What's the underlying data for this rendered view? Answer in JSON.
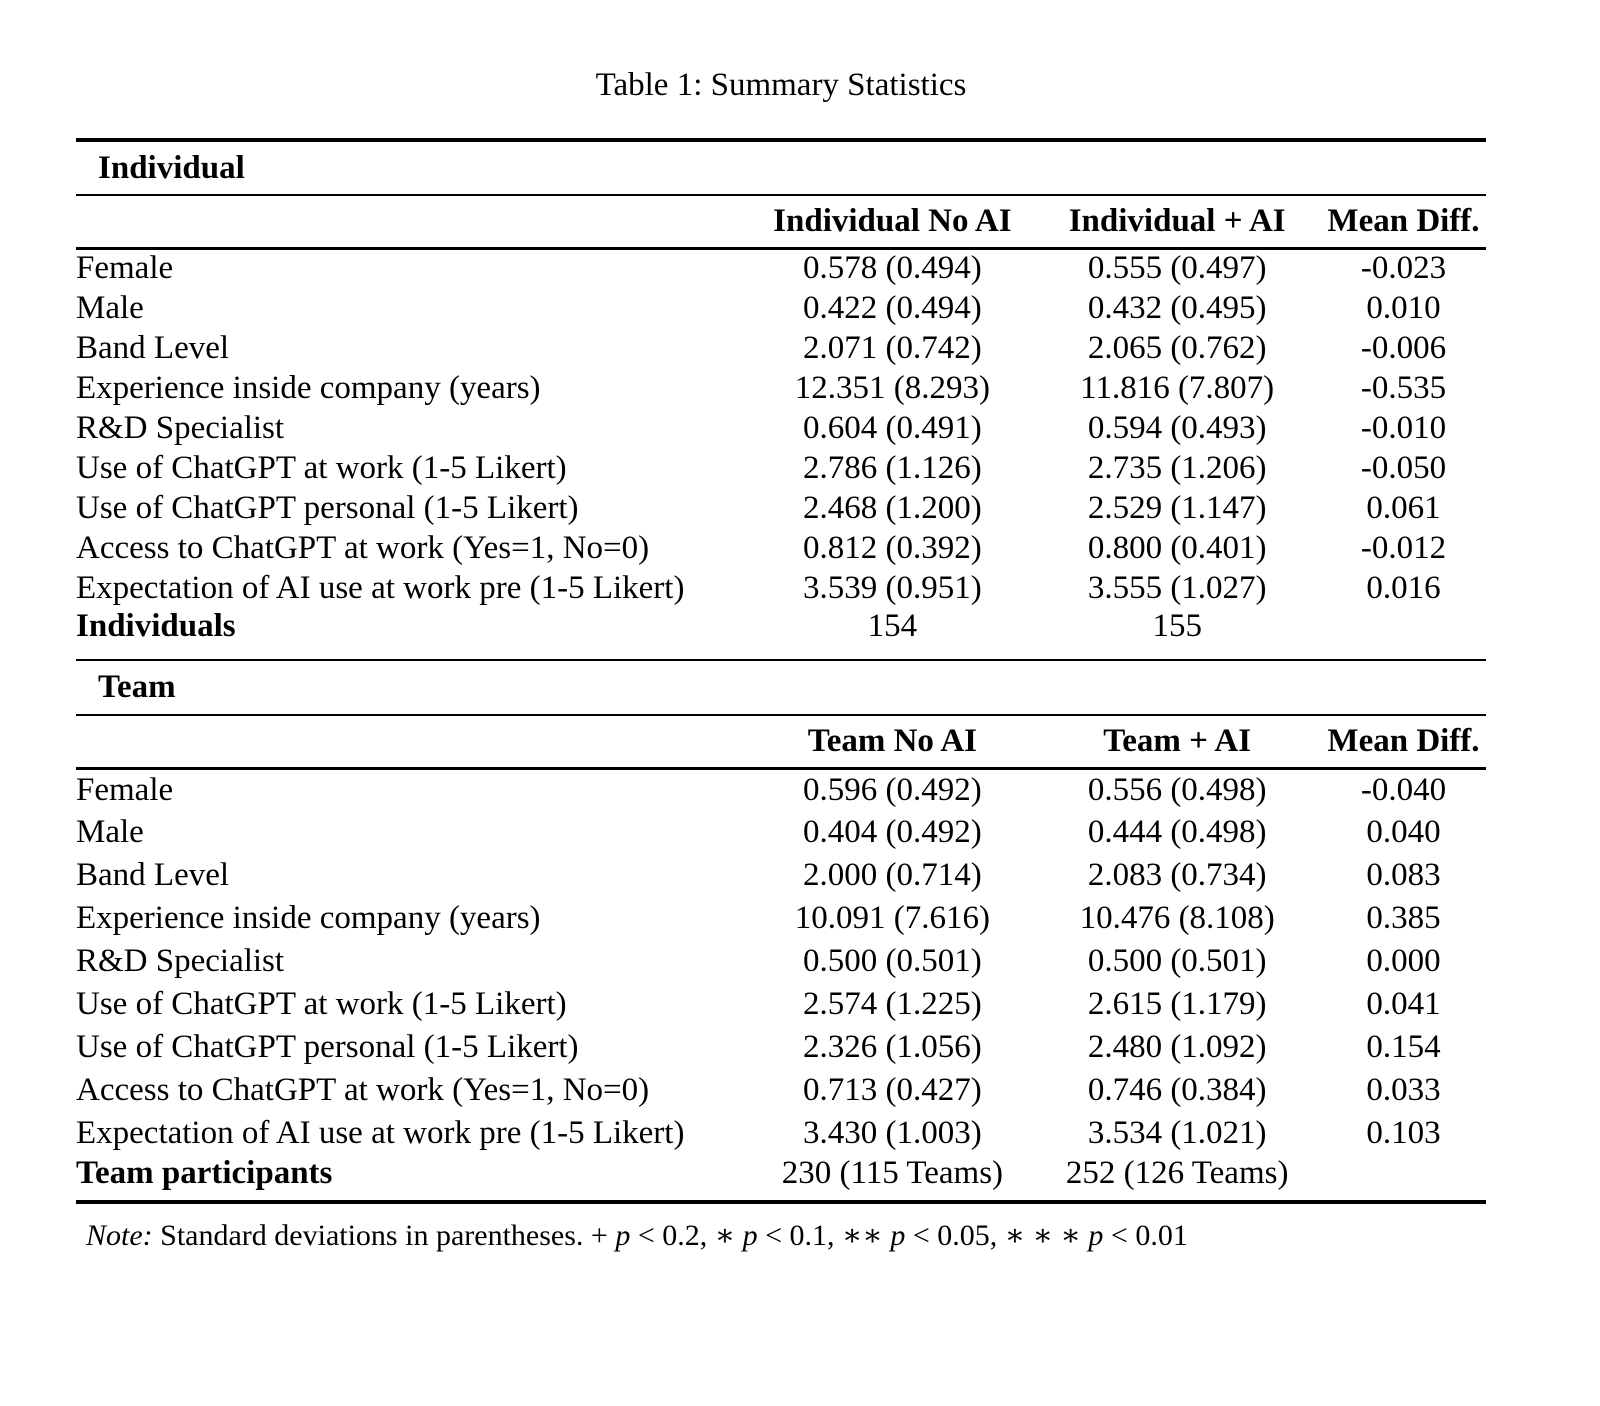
{
  "page_title": "Table 1: Summary Statistics",
  "colors": {
    "text": "#000000",
    "background": "#ffffff",
    "rule": "#000000"
  },
  "table": {
    "panels": [
      {
        "id": "individual",
        "section_label": "Individual",
        "columns": [
          "",
          "Individual No AI",
          "Individual + AI",
          "Mean Diff."
        ],
        "rows": [
          {
            "label": "Female",
            "bold": false,
            "values": [
              "0.578 (0.494)",
              "0.555 (0.497)",
              "-0.023"
            ]
          },
          {
            "label": "Male",
            "bold": false,
            "values": [
              "0.422 (0.494)",
              "0.432 (0.495)",
              "0.010"
            ]
          },
          {
            "label": "Band Level",
            "bold": false,
            "values": [
              "2.071 (0.742)",
              "2.065 (0.762)",
              "-0.006"
            ]
          },
          {
            "label": "Experience inside company (years)",
            "bold": false,
            "values": [
              "12.351 (8.293)",
              "11.816 (7.807)",
              "-0.535"
            ]
          },
          {
            "label": "R&D Specialist",
            "bold": false,
            "values": [
              "0.604 (0.491)",
              "0.594 (0.493)",
              "-0.010"
            ]
          },
          {
            "label": "Use of ChatGPT at work (1-5 Likert)",
            "bold": false,
            "values": [
              "2.786 (1.126)",
              "2.735 (1.206)",
              "-0.050"
            ]
          },
          {
            "label": "Use of ChatGPT personal (1-5 Likert)",
            "bold": false,
            "values": [
              "2.468 (1.200)",
              "2.529 (1.147)",
              "0.061"
            ]
          },
          {
            "label": "Access to ChatGPT at work (Yes=1, No=0)",
            "bold": false,
            "values": [
              "0.812 (0.392)",
              "0.800 (0.401)",
              "-0.012"
            ]
          },
          {
            "label": "Expectation of AI use at work pre (1-5 Likert)",
            "bold": false,
            "values": [
              "3.539 (0.951)",
              "3.555 (1.027)",
              "0.016"
            ]
          },
          {
            "label": "Individuals",
            "bold": true,
            "values": [
              "154",
              "155",
              ""
            ]
          }
        ]
      },
      {
        "id": "team",
        "section_label": "Team",
        "columns": [
          "",
          "Team No AI",
          "Team + AI",
          "Mean Diff."
        ],
        "rows": [
          {
            "label": "Female",
            "bold": false,
            "values": [
              "0.596 (0.492)",
              "0.556 (0.498)",
              "-0.040"
            ]
          },
          {
            "label": "Male",
            "bold": false,
            "values": [
              "0.404 (0.492)",
              "0.444 (0.498)",
              "0.040"
            ]
          },
          {
            "label": "Band Level",
            "bold": false,
            "values": [
              "2.000 (0.714)",
              "2.083 (0.734)",
              "0.083"
            ]
          },
          {
            "label": "Experience inside company (years)",
            "bold": false,
            "values": [
              "10.091 (7.616)",
              "10.476 (8.108)",
              "0.385"
            ]
          },
          {
            "label": "R&D Specialist",
            "bold": false,
            "values": [
              "0.500 (0.501)",
              "0.500 (0.501)",
              "0.000"
            ]
          },
          {
            "label": "Use of ChatGPT at work (1-5 Likert)",
            "bold": false,
            "values": [
              "2.574 (1.225)",
              "2.615 (1.179)",
              "0.041"
            ]
          },
          {
            "label": "Use of ChatGPT personal (1-5 Likert)",
            "bold": false,
            "values": [
              "2.326 (1.056)",
              "2.480 (1.092)",
              "0.154"
            ]
          },
          {
            "label": "Access to ChatGPT at work (Yes=1, No=0)",
            "bold": false,
            "values": [
              "0.713 (0.427)",
              "0.746 (0.384)",
              "0.033"
            ]
          },
          {
            "label": "Expectation of AI use at work pre (1-5 Likert)",
            "bold": false,
            "values": [
              "3.430 (1.003)",
              "3.534 (1.021)",
              "0.103"
            ]
          },
          {
            "label": "Team participants",
            "bold": true,
            "values": [
              "230 (115 Teams)",
              "252 (126 Teams)",
              ""
            ]
          }
        ]
      }
    ]
  },
  "note": {
    "segments": [
      {
        "text": "Note:",
        "italic": true
      },
      {
        "text": " Standard deviations in parentheses. + ",
        "italic": false
      },
      {
        "text": "p",
        "italic": true
      },
      {
        "text": " < 0.2, ∗ ",
        "italic": false
      },
      {
        "text": "p",
        "italic": true
      },
      {
        "text": " < 0.1, ∗∗ ",
        "italic": false
      },
      {
        "text": "p",
        "italic": true
      },
      {
        "text": " < 0.05, ∗ ∗ ∗ ",
        "italic": false
      },
      {
        "text": "p",
        "italic": true
      },
      {
        "text": " < 0.01",
        "italic": false
      }
    ]
  }
}
